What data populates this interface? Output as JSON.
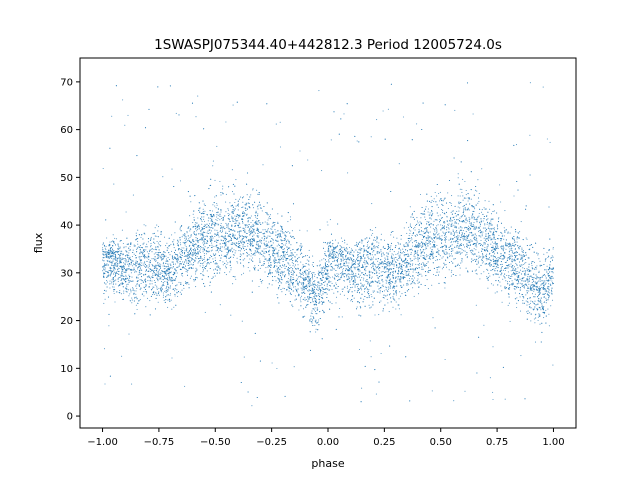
{
  "chart_data": {
    "type": "scatter",
    "title": "1SWASPJ075344.40+442812.3 Period 12005724.0s",
    "xlabel": "phase",
    "ylabel": "flux",
    "xlim": [
      -1.1,
      1.1
    ],
    "ylim": [
      -2.5,
      75
    ],
    "xticks": [
      -1.0,
      -0.75,
      -0.5,
      -0.25,
      0.0,
      0.25,
      0.5,
      0.75,
      1.0
    ],
    "xtick_labels": [
      "−1.00",
      "−0.75",
      "−0.50",
      "−0.25",
      "0.00",
      "0.25",
      "0.50",
      "0.75",
      "1.00"
    ],
    "yticks": [
      0,
      10,
      20,
      30,
      40,
      50,
      60,
      70
    ],
    "ytick_labels": [
      "0",
      "10",
      "20",
      "30",
      "40",
      "50",
      "60",
      "70"
    ],
    "grid": false,
    "legend": false,
    "series": [
      {
        "color": "#1f77b4",
        "description_of_shape": "dense phase-folded light curve repeated over two cycles",
        "profile": {
          "phase": [
            0.0,
            0.05,
            0.1,
            0.15,
            0.2,
            0.25,
            0.3,
            0.35,
            0.4,
            0.45,
            0.5,
            0.55,
            0.6,
            0.65,
            0.7,
            0.75,
            0.8,
            0.85,
            0.9,
            0.95,
            1.0
          ],
          "median_flux": [
            33,
            33,
            31,
            31,
            32,
            31,
            30,
            33,
            35,
            37,
            38,
            38,
            39,
            38,
            37,
            35,
            33,
            31,
            28,
            25,
            31
          ],
          "spread_low": [
            22,
            23,
            22,
            20,
            21,
            21,
            20,
            23,
            25,
            26,
            26,
            26,
            28,
            28,
            27,
            25,
            22,
            21,
            18,
            15,
            23
          ],
          "spread_high": [
            38,
            38,
            38,
            40,
            41,
            41,
            39,
            42,
            46,
            48,
            50,
            50,
            51,
            50,
            48,
            45,
            43,
            41,
            38,
            34,
            40
          ]
        }
      }
    ]
  }
}
